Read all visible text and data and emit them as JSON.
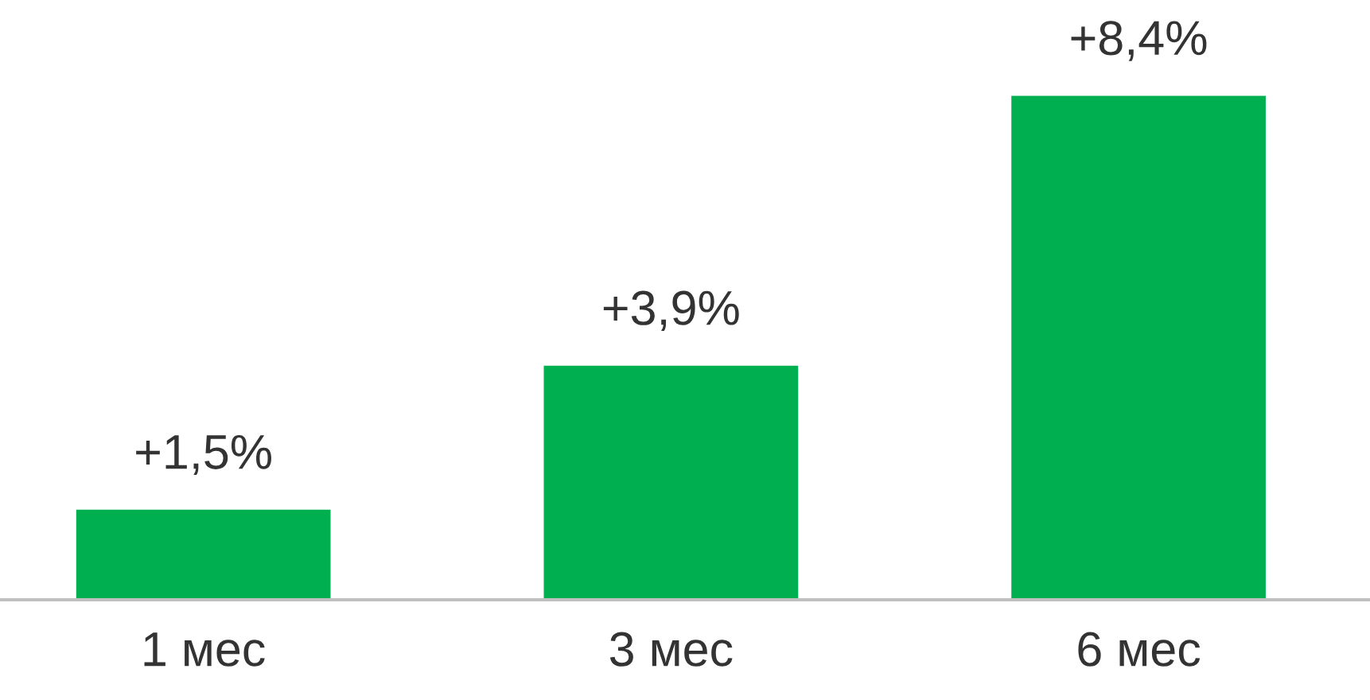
{
  "chart_data": {
    "type": "bar",
    "categories": [
      "1 мес",
      "3 мес",
      "6 мес"
    ],
    "values": [
      1.5,
      3.9,
      8.4
    ],
    "value_labels": [
      "+1,5%",
      "+3,9%",
      "+8,4%"
    ],
    "color": "#00b050",
    "tick_labels": "x",
    "grid": false,
    "legend": false
  }
}
